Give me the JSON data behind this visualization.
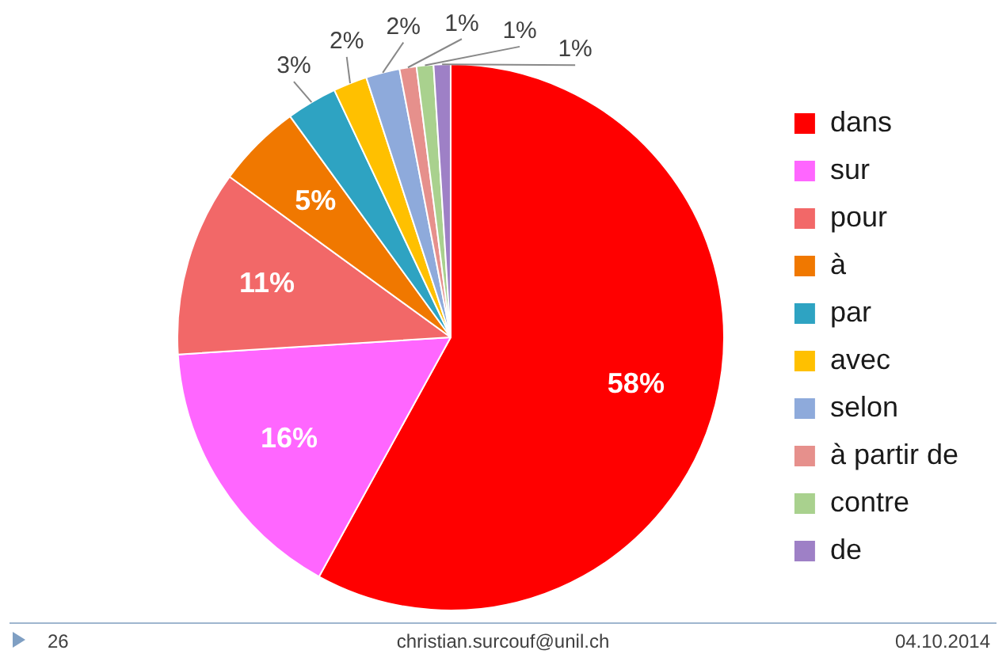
{
  "chart_data": {
    "type": "pie",
    "categories": [
      "dans",
      "sur",
      "pour",
      "à",
      "par",
      "avec",
      "selon",
      "à partir de",
      "contre",
      "de"
    ],
    "values": [
      58,
      16,
      11,
      5,
      3,
      2,
      2,
      1,
      1,
      1
    ],
    "colors": [
      "#ff0000",
      "#ff66ff",
      "#f26868",
      "#f07800",
      "#2ea3c2",
      "#ffc000",
      "#8eaadb",
      "#e6908c",
      "#a9d18e",
      "#9e80c6"
    ],
    "value_labels": [
      "58%",
      "16%",
      "11%",
      "5%",
      "3%",
      "2%",
      "2%",
      "1%",
      "1%",
      "1%"
    ],
    "legend": "right",
    "annotations": [
      "26",
      "christian.surcouf@unil.ch",
      "04.10.2014"
    ]
  }
}
